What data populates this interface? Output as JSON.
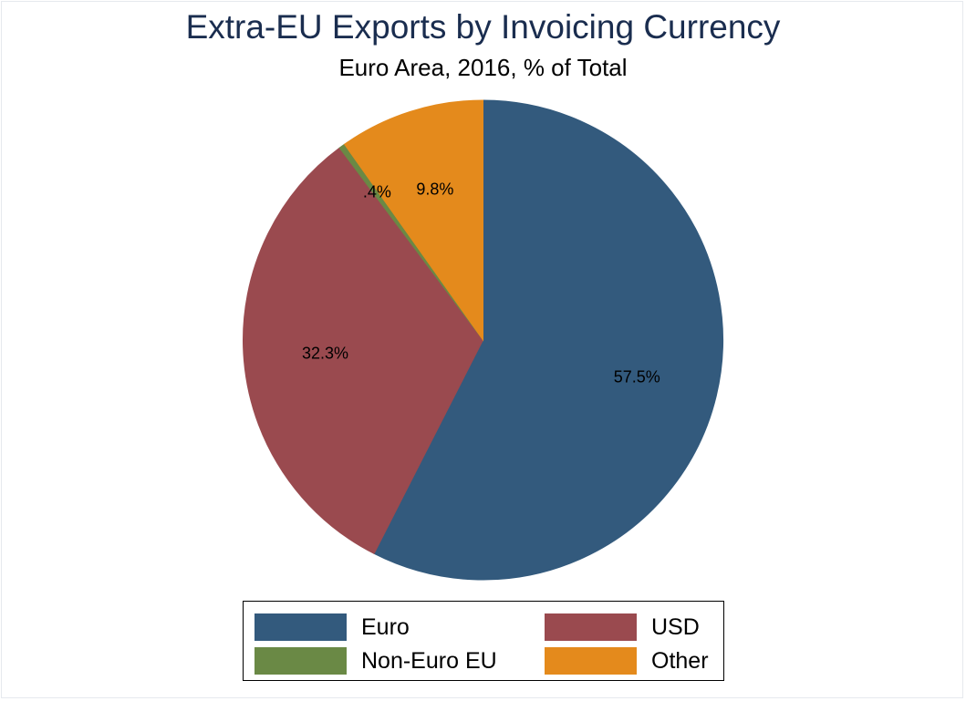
{
  "chart_data": {
    "type": "pie",
    "title": "Extra-EU Exports by Invoicing Currency",
    "subtitle": "Euro Area, 2016, % of Total",
    "slices": [
      {
        "name": "Euro",
        "value": 57.5,
        "label": "57.5%",
        "color": "#335a7d"
      },
      {
        "name": "USD",
        "value": 32.3,
        "label": "32.3%",
        "color": "#9a4a4f"
      },
      {
        "name": "Non-Euro EU",
        "value": 0.4,
        "label": ".4%",
        "color": "#6a8945"
      },
      {
        "name": "Other",
        "value": 9.8,
        "label": "9.8%",
        "color": "#e48a1c"
      }
    ],
    "legend_position": "bottom",
    "legend_order": [
      "Euro",
      "USD",
      "Non-Euro EU",
      "Other"
    ]
  }
}
